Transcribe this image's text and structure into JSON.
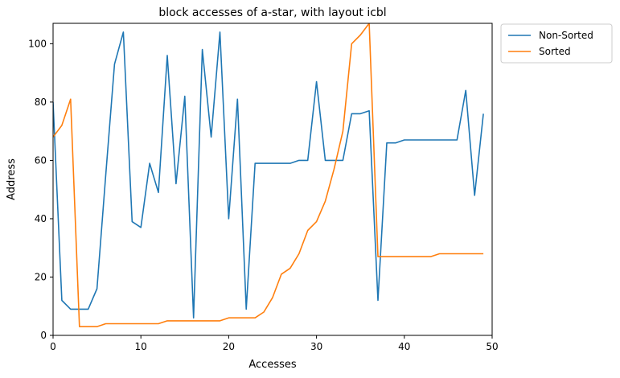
{
  "chart_data": {
    "type": "line",
    "title": "block accesses of a-star, with layout icbl",
    "xlabel": "Accesses",
    "ylabel": "Address",
    "xlim": [
      0,
      50
    ],
    "ylim": [
      0,
      107
    ],
    "xticks": [
      0,
      10,
      20,
      30,
      40,
      50
    ],
    "yticks": [
      0,
      20,
      40,
      60,
      80,
      100
    ],
    "grid": false,
    "legend_placement": "outside-top-right",
    "series": [
      {
        "name": "Non-Sorted",
        "color": "#1f77b4",
        "x": [
          0,
          1,
          2,
          3,
          4,
          5,
          6,
          7,
          8,
          9,
          10,
          11,
          12,
          13,
          14,
          15,
          16,
          17,
          18,
          19,
          20,
          21,
          22,
          23,
          24,
          25,
          26,
          27,
          28,
          29,
          30,
          31,
          32,
          33,
          34,
          35,
          36,
          37,
          38,
          39,
          40,
          41,
          42,
          43,
          44,
          45,
          46,
          47,
          48,
          49
        ],
        "values": [
          80,
          12,
          9,
          9,
          9,
          16,
          55,
          93,
          104,
          39,
          37,
          59,
          49,
          96,
          52,
          82,
          6,
          98,
          68,
          104,
          40,
          81,
          9,
          59,
          59,
          59,
          59,
          59,
          60,
          60,
          87,
          60,
          60,
          60,
          76,
          76,
          77,
          12,
          66,
          66,
          67,
          67,
          67,
          67,
          67,
          67,
          67,
          84,
          48,
          76
        ]
      },
      {
        "name": "Sorted",
        "color": "#ff7f0e",
        "x": [
          0,
          1,
          2,
          3,
          4,
          5,
          6,
          7,
          8,
          9,
          10,
          11,
          12,
          13,
          14,
          15,
          16,
          17,
          18,
          19,
          20,
          21,
          22,
          23,
          24,
          25,
          26,
          27,
          28,
          29,
          30,
          31,
          32,
          33,
          34,
          35,
          36,
          37,
          38,
          39,
          40,
          41,
          42,
          43,
          44,
          45,
          46,
          47,
          48,
          49
        ],
        "values": [
          68,
          72,
          81,
          3,
          3,
          3,
          4,
          4,
          4,
          4,
          4,
          4,
          4,
          5,
          5,
          5,
          5,
          5,
          5,
          5,
          6,
          6,
          6,
          6,
          8,
          13,
          21,
          23,
          28,
          36,
          39,
          46,
          57,
          70,
          100,
          103,
          107,
          27,
          27,
          27,
          27,
          27,
          27,
          27,
          28,
          28,
          28,
          28,
          28,
          28
        ]
      }
    ]
  }
}
